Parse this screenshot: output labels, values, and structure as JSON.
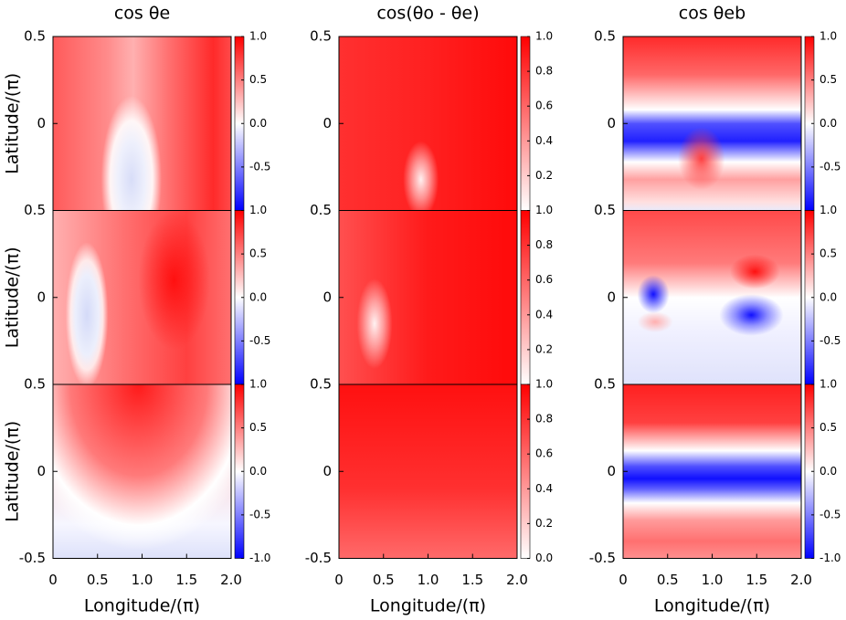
{
  "chart_data": [
    {
      "type": "heatmap",
      "title": "cos θe",
      "ylabel": "Latitude/(π)",
      "xlim": [
        0,
        2
      ],
      "ylim": [
        -0.5,
        0.5
      ],
      "yticks": [
        0,
        0.5
      ],
      "clim": [
        -1,
        1
      ],
      "cticks": [
        -0.5,
        {
          "value": 0,
          "label": "0.0"
        },
        0.5,
        {
          "value": 1,
          "label": "1.0"
        }
      ],
      "cmap_colors": [
        "#0000ff",
        "#ffffff",
        "#ff0000"
      ]
    },
    {
      "type": "heatmap",
      "title": "cos(θo - θe)",
      "xlim": [
        0,
        2
      ],
      "ylim": [
        -0.5,
        0.5
      ],
      "yticks": [
        0,
        0.5
      ],
      "clim": [
        0,
        1
      ],
      "cticks": [
        0.2,
        0.4,
        0.6,
        0.8,
        {
          "value": 1,
          "label": "1.0"
        }
      ],
      "cmap_colors": [
        "#ffffff",
        "#ff0000"
      ]
    },
    {
      "type": "heatmap",
      "title": "cos θeb",
      "xlim": [
        0,
        2
      ],
      "ylim": [
        -0.5,
        0.5
      ],
      "yticks": [
        0,
        0.5
      ],
      "clim": [
        -1,
        1
      ],
      "cticks": [
        -0.5,
        {
          "value": 0,
          "label": "0.0"
        },
        0.5,
        {
          "value": 1,
          "label": "1.0"
        }
      ],
      "cmap_colors": [
        "#0000ff",
        "#ffffff",
        "#ff0000"
      ]
    },
    {
      "type": "heatmap",
      "ylabel": "Latitude/(π)",
      "xlim": [
        0,
        2
      ],
      "ylim": [
        -0.5,
        0.5
      ],
      "yticks": [
        0,
        0.5
      ],
      "clim": [
        -1,
        1
      ],
      "cticks": [
        -0.5,
        {
          "value": 0,
          "label": "0.0"
        },
        0.5,
        {
          "value": 1,
          "label": "1.0"
        }
      ],
      "cmap_colors": [
        "#0000ff",
        "#ffffff",
        "#ff0000"
      ]
    },
    {
      "type": "heatmap",
      "xlim": [
        0,
        2
      ],
      "ylim": [
        -0.5,
        0.5
      ],
      "yticks": [
        0,
        0.5
      ],
      "clim": [
        0,
        1
      ],
      "cticks": [
        0.2,
        0.4,
        0.6,
        0.8,
        {
          "value": 1,
          "label": "1.0"
        }
      ],
      "cmap_colors": [
        "#ffffff",
        "#ff0000"
      ]
    },
    {
      "type": "heatmap",
      "xlim": [
        0,
        2
      ],
      "ylim": [
        -0.5,
        0.5
      ],
      "yticks": [
        0,
        0.5
      ],
      "clim": [
        -1,
        1
      ],
      "cticks": [
        -0.5,
        {
          "value": 0,
          "label": "0.0"
        },
        0.5,
        {
          "value": 1,
          "label": "1.0"
        }
      ],
      "cmap_colors": [
        "#0000ff",
        "#ffffff",
        "#ff0000"
      ]
    },
    {
      "type": "heatmap",
      "ylabel": "Latitude/(π)",
      "xlabel": "Longitude/(π)",
      "xlim": [
        0,
        2
      ],
      "ylim": [
        -0.5,
        0.5
      ],
      "xticks": [
        0,
        0.5,
        {
          "value": 1,
          "label": "1.0"
        },
        1.5,
        {
          "value": 2,
          "label": "2.0"
        }
      ],
      "yticks": [
        -0.5,
        0,
        0.5
      ],
      "clim": [
        -1,
        1
      ],
      "cticks": [
        {
          "value": -1,
          "label": "-1.0"
        },
        -0.5,
        {
          "value": 0,
          "label": "0.0"
        },
        0.5,
        {
          "value": 1,
          "label": "1.0"
        }
      ],
      "cmap_colors": [
        "#0000ff",
        "#ffffff",
        "#ff0000"
      ]
    },
    {
      "type": "heatmap",
      "xlabel": "Longitude/(π)",
      "xlim": [
        0,
        2
      ],
      "ylim": [
        -0.5,
        0.5
      ],
      "xticks": [
        0,
        0.5,
        {
          "value": 1,
          "label": "1.0"
        },
        1.5,
        {
          "value": 2,
          "label": "2.0"
        }
      ],
      "yticks": [
        -0.5,
        0,
        0.5
      ],
      "clim": [
        0,
        1
      ],
      "cticks": [
        {
          "value": 0,
          "label": "0.0"
        },
        0.2,
        0.4,
        0.6,
        0.8,
        {
          "value": 1,
          "label": "1.0"
        }
      ],
      "cmap_colors": [
        "#ffffff",
        "#ff0000"
      ]
    },
    {
      "type": "heatmap",
      "xlabel": "Longitude/(π)",
      "xlim": [
        0,
        2
      ],
      "ylim": [
        -0.5,
        0.5
      ],
      "xticks": [
        0,
        0.5,
        {
          "value": 1,
          "label": "1.0"
        },
        1.5,
        {
          "value": 2,
          "label": "2.0"
        }
      ],
      "yticks": [
        -0.5,
        0,
        0.5
      ],
      "clim": [
        -1,
        1
      ],
      "cticks": [
        {
          "value": -1,
          "label": "-1.0"
        },
        -0.5,
        {
          "value": 0,
          "label": "0.0"
        },
        0.5,
        {
          "value": 1,
          "label": "1.0"
        }
      ],
      "cmap_colors": [
        "#0000ff",
        "#ffffff",
        "#ff0000"
      ]
    }
  ]
}
